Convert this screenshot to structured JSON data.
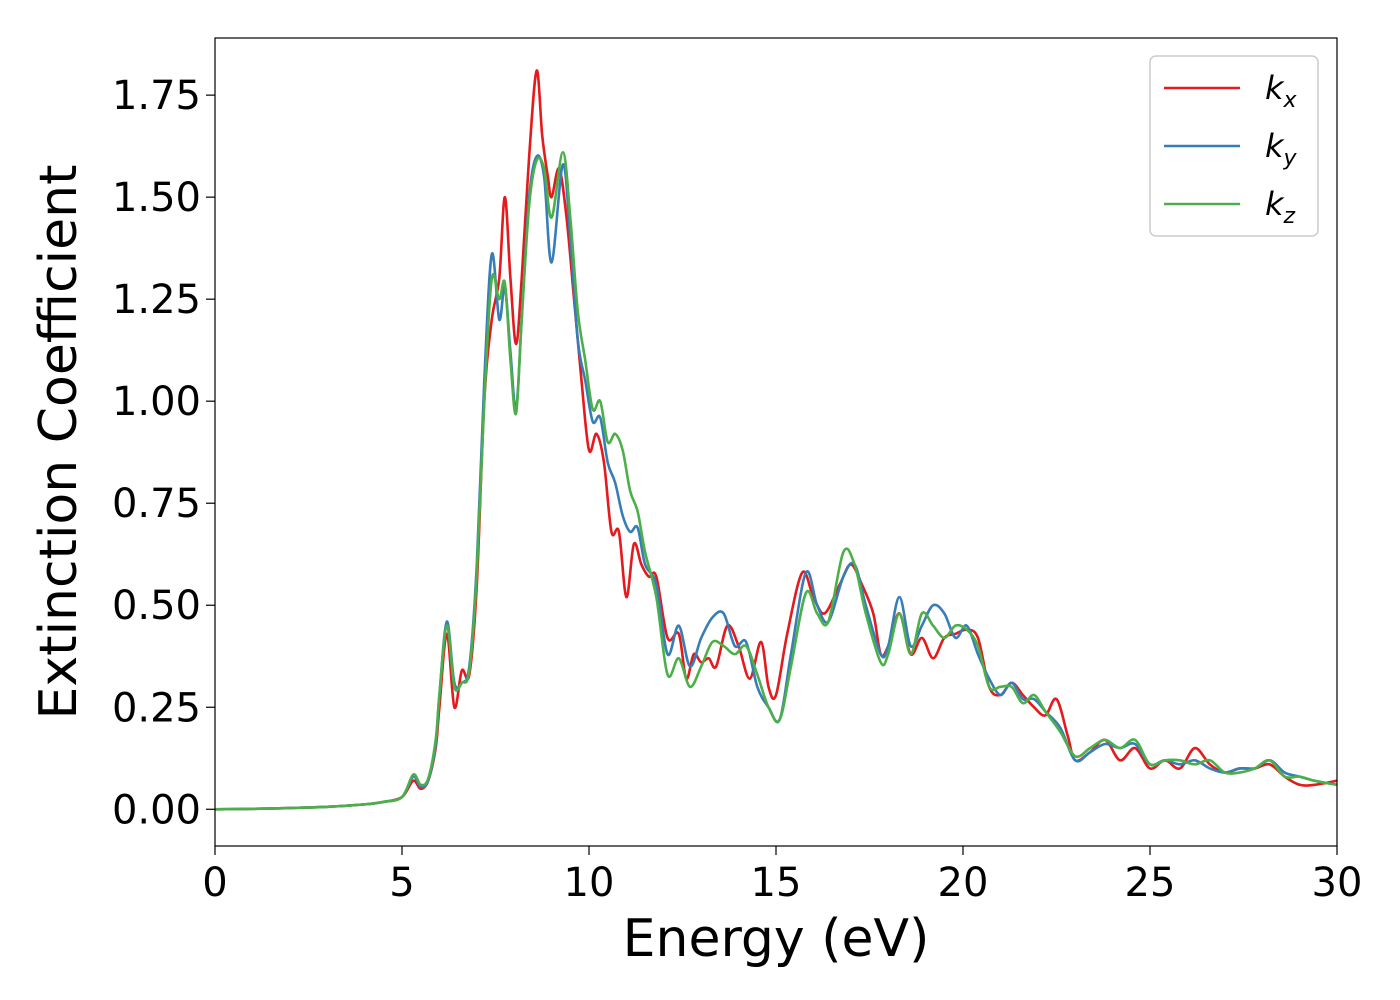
{
  "chart_data": {
    "type": "line",
    "xlabel": "Energy (eV)",
    "ylabel": "Extinction Coefficient",
    "xlim": [
      0,
      30
    ],
    "ylim": [
      -0.09,
      1.89
    ],
    "xticks": [
      0,
      5,
      10,
      15,
      20,
      25,
      30
    ],
    "xtick_labels": [
      "0",
      "5",
      "10",
      "15",
      "20",
      "25",
      "30"
    ],
    "yticks": [
      0,
      0.25,
      0.5,
      0.75,
      1.0,
      1.25,
      1.5,
      1.75
    ],
    "ytick_labels": [
      "0.00",
      "0.25",
      "0.50",
      "0.75",
      "1.00",
      "1.25",
      "1.50",
      "1.75"
    ],
    "grid": false,
    "legend_position": "top-right",
    "series": [
      {
        "name": "k",
        "subscript": "x",
        "color": "#e41a1c",
        "points": [
          [
            0,
            0.0
          ],
          [
            1,
            0.001
          ],
          [
            2,
            0.003
          ],
          [
            3,
            0.006
          ],
          [
            4,
            0.012
          ],
          [
            4.5,
            0.018
          ],
          [
            5.0,
            0.03
          ],
          [
            5.3,
            0.07
          ],
          [
            5.5,
            0.05
          ],
          [
            5.7,
            0.07
          ],
          [
            5.9,
            0.15
          ],
          [
            6.0,
            0.25
          ],
          [
            6.2,
            0.43
          ],
          [
            6.4,
            0.25
          ],
          [
            6.6,
            0.34
          ],
          [
            6.8,
            0.33
          ],
          [
            7.0,
            0.55
          ],
          [
            7.2,
            1.0
          ],
          [
            7.4,
            1.2
          ],
          [
            7.6,
            1.3
          ],
          [
            7.75,
            1.5
          ],
          [
            7.9,
            1.3
          ],
          [
            8.05,
            1.14
          ],
          [
            8.2,
            1.3
          ],
          [
            8.4,
            1.6
          ],
          [
            8.6,
            1.81
          ],
          [
            8.75,
            1.65
          ],
          [
            8.9,
            1.55
          ],
          [
            9.0,
            1.5
          ],
          [
            9.2,
            1.57
          ],
          [
            9.4,
            1.45
          ],
          [
            9.6,
            1.25
          ],
          [
            9.8,
            1.05
          ],
          [
            10.0,
            0.88
          ],
          [
            10.2,
            0.92
          ],
          [
            10.4,
            0.85
          ],
          [
            10.6,
            0.68
          ],
          [
            10.8,
            0.68
          ],
          [
            11.0,
            0.52
          ],
          [
            11.2,
            0.65
          ],
          [
            11.4,
            0.6
          ],
          [
            11.6,
            0.57
          ],
          [
            11.8,
            0.57
          ],
          [
            12.1,
            0.42
          ],
          [
            12.4,
            0.43
          ],
          [
            12.6,
            0.32
          ],
          [
            12.8,
            0.38
          ],
          [
            13.0,
            0.36
          ],
          [
            13.2,
            0.37
          ],
          [
            13.4,
            0.35
          ],
          [
            13.7,
            0.45
          ],
          [
            14.0,
            0.4
          ],
          [
            14.3,
            0.32
          ],
          [
            14.6,
            0.41
          ],
          [
            14.8,
            0.3
          ],
          [
            15.0,
            0.28
          ],
          [
            15.3,
            0.43
          ],
          [
            15.7,
            0.58
          ],
          [
            16.0,
            0.52
          ],
          [
            16.3,
            0.48
          ],
          [
            16.7,
            0.55
          ],
          [
            17.0,
            0.6
          ],
          [
            17.3,
            0.55
          ],
          [
            17.6,
            0.48
          ],
          [
            17.8,
            0.38
          ],
          [
            18.0,
            0.4
          ],
          [
            18.3,
            0.48
          ],
          [
            18.6,
            0.38
          ],
          [
            18.9,
            0.42
          ],
          [
            19.2,
            0.37
          ],
          [
            19.5,
            0.42
          ],
          [
            19.8,
            0.43
          ],
          [
            20.1,
            0.44
          ],
          [
            20.4,
            0.42
          ],
          [
            20.7,
            0.3
          ],
          [
            21.0,
            0.28
          ],
          [
            21.3,
            0.31
          ],
          [
            21.6,
            0.28
          ],
          [
            21.9,
            0.25
          ],
          [
            22.2,
            0.23
          ],
          [
            22.5,
            0.27
          ],
          [
            22.8,
            0.18
          ],
          [
            23.0,
            0.12
          ],
          [
            23.4,
            0.14
          ],
          [
            23.8,
            0.17
          ],
          [
            24.2,
            0.12
          ],
          [
            24.6,
            0.15
          ],
          [
            25.0,
            0.1
          ],
          [
            25.4,
            0.12
          ],
          [
            25.8,
            0.1
          ],
          [
            26.2,
            0.15
          ],
          [
            26.6,
            0.11
          ],
          [
            27.0,
            0.09
          ],
          [
            27.4,
            0.1
          ],
          [
            27.8,
            0.1
          ],
          [
            28.2,
            0.11
          ],
          [
            28.6,
            0.08
          ],
          [
            29.0,
            0.06
          ],
          [
            29.4,
            0.06
          ],
          [
            30.0,
            0.07
          ]
        ]
      },
      {
        "name": "k",
        "subscript": "y",
        "color": "#377eb8",
        "points": [
          [
            0,
            0.0
          ],
          [
            1,
            0.001
          ],
          [
            2,
            0.003
          ],
          [
            3,
            0.006
          ],
          [
            4,
            0.012
          ],
          [
            4.5,
            0.018
          ],
          [
            5.0,
            0.03
          ],
          [
            5.3,
            0.08
          ],
          [
            5.5,
            0.055
          ],
          [
            5.7,
            0.07
          ],
          [
            5.9,
            0.16
          ],
          [
            6.0,
            0.28
          ],
          [
            6.2,
            0.46
          ],
          [
            6.4,
            0.31
          ],
          [
            6.6,
            0.31
          ],
          [
            6.8,
            0.35
          ],
          [
            7.0,
            0.6
          ],
          [
            7.2,
            1.05
          ],
          [
            7.4,
            1.36
          ],
          [
            7.6,
            1.2
          ],
          [
            7.75,
            1.28
          ],
          [
            7.9,
            1.12
          ],
          [
            8.05,
            0.98
          ],
          [
            8.2,
            1.2
          ],
          [
            8.4,
            1.5
          ],
          [
            8.6,
            1.6
          ],
          [
            8.8,
            1.55
          ],
          [
            9.0,
            1.34
          ],
          [
            9.3,
            1.58
          ],
          [
            9.5,
            1.4
          ],
          [
            9.7,
            1.15
          ],
          [
            9.9,
            1.05
          ],
          [
            10.1,
            0.95
          ],
          [
            10.3,
            0.96
          ],
          [
            10.5,
            0.85
          ],
          [
            10.7,
            0.8
          ],
          [
            10.9,
            0.72
          ],
          [
            11.1,
            0.68
          ],
          [
            11.3,
            0.69
          ],
          [
            11.5,
            0.6
          ],
          [
            11.8,
            0.55
          ],
          [
            12.1,
            0.38
          ],
          [
            12.4,
            0.45
          ],
          [
            12.7,
            0.35
          ],
          [
            13.0,
            0.42
          ],
          [
            13.3,
            0.47
          ],
          [
            13.6,
            0.48
          ],
          [
            13.9,
            0.4
          ],
          [
            14.2,
            0.41
          ],
          [
            14.5,
            0.3
          ],
          [
            14.8,
            0.25
          ],
          [
            15.1,
            0.22
          ],
          [
            15.4,
            0.38
          ],
          [
            15.8,
            0.58
          ],
          [
            16.1,
            0.5
          ],
          [
            16.4,
            0.46
          ],
          [
            16.8,
            0.57
          ],
          [
            17.1,
            0.6
          ],
          [
            17.4,
            0.5
          ],
          [
            17.8,
            0.38
          ],
          [
            18.0,
            0.4
          ],
          [
            18.3,
            0.52
          ],
          [
            18.6,
            0.4
          ],
          [
            18.9,
            0.45
          ],
          [
            19.2,
            0.5
          ],
          [
            19.5,
            0.48
          ],
          [
            19.8,
            0.42
          ],
          [
            20.1,
            0.45
          ],
          [
            20.4,
            0.38
          ],
          [
            20.7,
            0.32
          ],
          [
            21.0,
            0.28
          ],
          [
            21.3,
            0.31
          ],
          [
            21.6,
            0.27
          ],
          [
            21.9,
            0.27
          ],
          [
            22.2,
            0.24
          ],
          [
            22.6,
            0.2
          ],
          [
            23.0,
            0.12
          ],
          [
            23.4,
            0.14
          ],
          [
            23.8,
            0.16
          ],
          [
            24.2,
            0.15
          ],
          [
            24.6,
            0.16
          ],
          [
            25.0,
            0.11
          ],
          [
            25.4,
            0.12
          ],
          [
            25.8,
            0.11
          ],
          [
            26.2,
            0.12
          ],
          [
            26.6,
            0.1
          ],
          [
            27.0,
            0.09
          ],
          [
            27.4,
            0.1
          ],
          [
            27.8,
            0.1
          ],
          [
            28.2,
            0.12
          ],
          [
            28.6,
            0.09
          ],
          [
            29.0,
            0.08
          ],
          [
            29.4,
            0.07
          ],
          [
            30.0,
            0.06
          ]
        ]
      },
      {
        "name": "k",
        "subscript": "z",
        "color": "#4daf4a",
        "points": [
          [
            0,
            0.0
          ],
          [
            1,
            0.001
          ],
          [
            2,
            0.003
          ],
          [
            3,
            0.006
          ],
          [
            4,
            0.012
          ],
          [
            4.5,
            0.018
          ],
          [
            5.0,
            0.03
          ],
          [
            5.3,
            0.085
          ],
          [
            5.5,
            0.06
          ],
          [
            5.7,
            0.075
          ],
          [
            5.9,
            0.17
          ],
          [
            6.0,
            0.28
          ],
          [
            6.2,
            0.45
          ],
          [
            6.4,
            0.3
          ],
          [
            6.6,
            0.31
          ],
          [
            6.8,
            0.34
          ],
          [
            7.0,
            0.58
          ],
          [
            7.2,
            1.0
          ],
          [
            7.4,
            1.3
          ],
          [
            7.6,
            1.25
          ],
          [
            7.75,
            1.29
          ],
          [
            7.9,
            1.1
          ],
          [
            8.05,
            0.97
          ],
          [
            8.2,
            1.2
          ],
          [
            8.4,
            1.48
          ],
          [
            8.6,
            1.59
          ],
          [
            8.8,
            1.57
          ],
          [
            9.0,
            1.45
          ],
          [
            9.3,
            1.61
          ],
          [
            9.5,
            1.45
          ],
          [
            9.7,
            1.22
          ],
          [
            9.9,
            1.1
          ],
          [
            10.1,
            0.98
          ],
          [
            10.3,
            1.0
          ],
          [
            10.5,
            0.9
          ],
          [
            10.7,
            0.92
          ],
          [
            10.9,
            0.88
          ],
          [
            11.1,
            0.78
          ],
          [
            11.3,
            0.73
          ],
          [
            11.5,
            0.63
          ],
          [
            11.8,
            0.52
          ],
          [
            12.1,
            0.33
          ],
          [
            12.4,
            0.37
          ],
          [
            12.7,
            0.3
          ],
          [
            13.0,
            0.35
          ],
          [
            13.3,
            0.41
          ],
          [
            13.6,
            0.4
          ],
          [
            13.9,
            0.38
          ],
          [
            14.2,
            0.4
          ],
          [
            14.5,
            0.33
          ],
          [
            14.8,
            0.25
          ],
          [
            15.1,
            0.22
          ],
          [
            15.4,
            0.35
          ],
          [
            15.8,
            0.53
          ],
          [
            16.1,
            0.48
          ],
          [
            16.4,
            0.46
          ],
          [
            16.8,
            0.63
          ],
          [
            17.1,
            0.6
          ],
          [
            17.4,
            0.48
          ],
          [
            17.8,
            0.36
          ],
          [
            18.0,
            0.38
          ],
          [
            18.3,
            0.48
          ],
          [
            18.6,
            0.38
          ],
          [
            18.9,
            0.48
          ],
          [
            19.2,
            0.45
          ],
          [
            19.5,
            0.42
          ],
          [
            19.8,
            0.45
          ],
          [
            20.1,
            0.44
          ],
          [
            20.4,
            0.4
          ],
          [
            20.7,
            0.3
          ],
          [
            21.0,
            0.3
          ],
          [
            21.3,
            0.3
          ],
          [
            21.6,
            0.26
          ],
          [
            21.9,
            0.28
          ],
          [
            22.2,
            0.24
          ],
          [
            22.6,
            0.19
          ],
          [
            23.0,
            0.13
          ],
          [
            23.4,
            0.15
          ],
          [
            23.8,
            0.17
          ],
          [
            24.2,
            0.15
          ],
          [
            24.6,
            0.17
          ],
          [
            25.0,
            0.11
          ],
          [
            25.4,
            0.12
          ],
          [
            25.8,
            0.12
          ],
          [
            26.2,
            0.11
          ],
          [
            26.6,
            0.12
          ],
          [
            27.0,
            0.09
          ],
          [
            27.4,
            0.09
          ],
          [
            27.8,
            0.1
          ],
          [
            28.2,
            0.12
          ],
          [
            28.6,
            0.08
          ],
          [
            29.0,
            0.08
          ],
          [
            29.4,
            0.07
          ],
          [
            30.0,
            0.06
          ]
        ]
      }
    ]
  }
}
